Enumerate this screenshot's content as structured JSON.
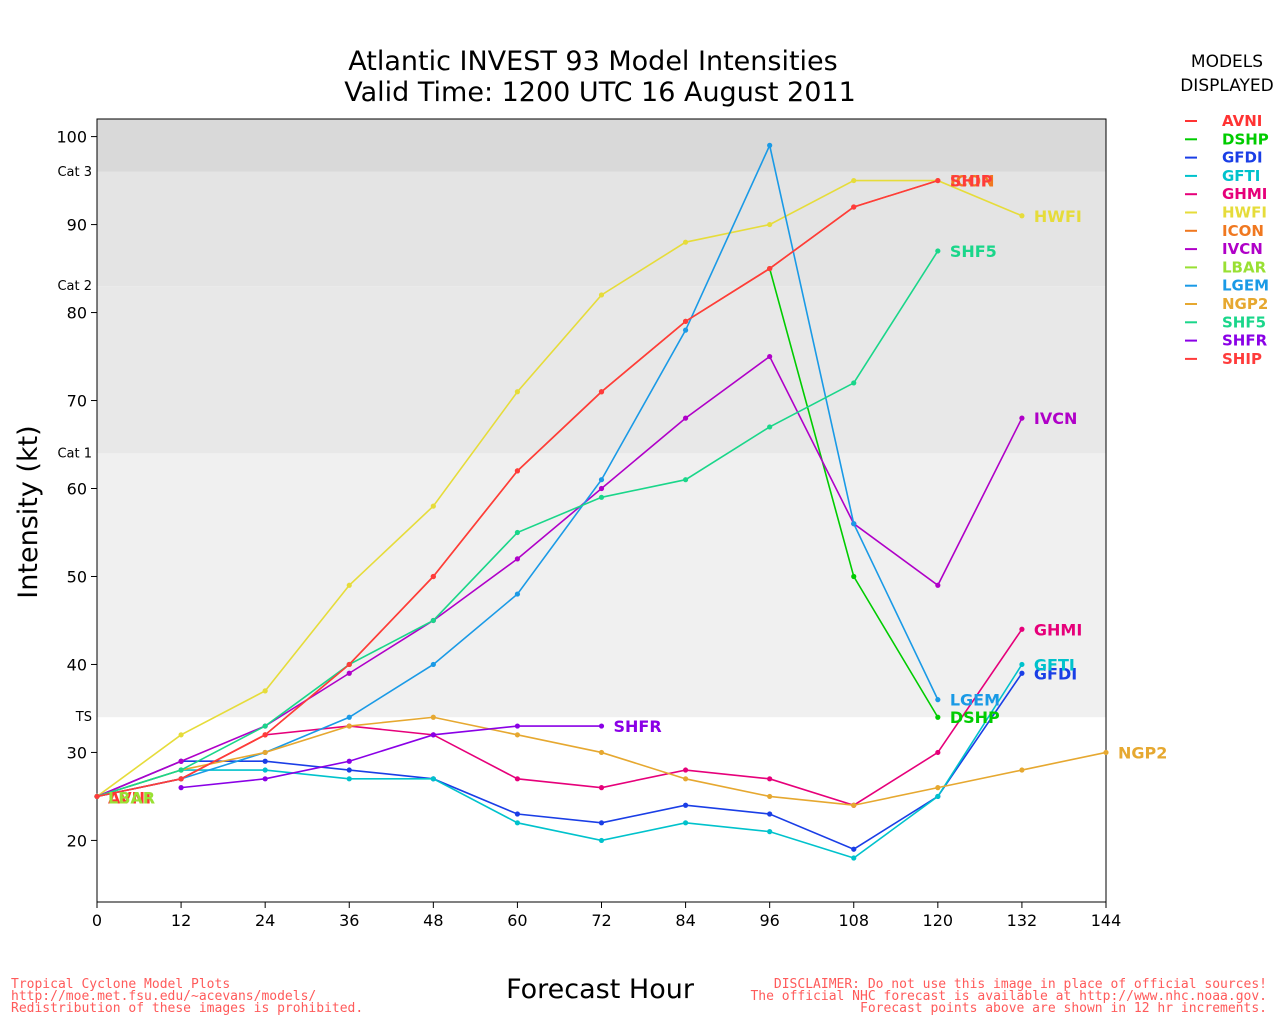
{
  "chart_data": {
    "type": "line",
    "title": [
      "Atlantic INVEST 93 Model Intensities",
      "Valid Time: 1200 UTC 16 August 2011"
    ],
    "xlabel": "Forecast Hour",
    "ylabel": "Intensity (kt)",
    "xlim": [
      0,
      144
    ],
    "ylim": [
      13,
      102
    ],
    "xticks": [
      0,
      12,
      24,
      36,
      48,
      60,
      72,
      84,
      96,
      108,
      120,
      132,
      144
    ],
    "yticks": [
      20,
      30,
      40,
      50,
      60,
      70,
      80,
      90,
      100
    ],
    "grid": false,
    "bands": [
      {
        "from": 13,
        "to": 34,
        "color": "#ffffff"
      },
      {
        "from": 34,
        "to": 64,
        "color": "#f0f0f0"
      },
      {
        "from": 64,
        "to": 83,
        "color": "#e8e8e8"
      },
      {
        "from": 83,
        "to": 96,
        "color": "#e4e4e4"
      },
      {
        "from": 96,
        "to": 102,
        "color": "#d9d9d9"
      }
    ],
    "category_labels": [
      {
        "label": "TS",
        "value": 34
      },
      {
        "label": "Cat 1",
        "value": 64
      },
      {
        "label": "Cat 2",
        "value": 83
      },
      {
        "label": "Cat 3",
        "value": 96
      }
    ],
    "legend_title": [
      "MODELS",
      "DISPLAYED"
    ],
    "legend_placement": "right",
    "series": [
      {
        "name": "AVNI",
        "color": "#ff3333",
        "label_at_end": false,
        "points": [
          [
            0,
            25
          ]
        ]
      },
      {
        "name": "DSHP",
        "color": "#00cc00",
        "label_at_end": true,
        "points": [
          [
            96,
            85
          ],
          [
            108,
            50
          ],
          [
            120,
            34
          ]
        ]
      },
      {
        "name": "GFDI",
        "color": "#1a3ee6",
        "label_at_end": true,
        "points": [
          [
            0,
            25
          ],
          [
            12,
            29
          ],
          [
            24,
            29
          ],
          [
            36,
            28
          ],
          [
            48,
            27
          ],
          [
            60,
            23
          ],
          [
            72,
            22
          ],
          [
            84,
            24
          ],
          [
            96,
            23
          ],
          [
            108,
            19
          ],
          [
            120,
            25
          ],
          [
            132,
            39
          ]
        ]
      },
      {
        "name": "GFTI",
        "color": "#00c2cc",
        "label_at_end": true,
        "points": [
          [
            0,
            25
          ],
          [
            12,
            28
          ],
          [
            24,
            28
          ],
          [
            36,
            27
          ],
          [
            48,
            27
          ],
          [
            60,
            22
          ],
          [
            72,
            20
          ],
          [
            84,
            22
          ],
          [
            96,
            21
          ],
          [
            108,
            18
          ],
          [
            120,
            25
          ],
          [
            132,
            40
          ]
        ]
      },
      {
        "name": "GHMI",
        "color": "#e6007a",
        "label_at_end": true,
        "points": [
          [
            0,
            25
          ],
          [
            12,
            27
          ],
          [
            24,
            32
          ],
          [
            36,
            33
          ],
          [
            48,
            32
          ],
          [
            60,
            27
          ],
          [
            72,
            26
          ],
          [
            84,
            28
          ],
          [
            96,
            27
          ],
          [
            108,
            24
          ],
          [
            120,
            30
          ],
          [
            132,
            44
          ]
        ]
      },
      {
        "name": "HWFI",
        "color": "#e6dc3a",
        "label_at_end": true,
        "points": [
          [
            0,
            25
          ],
          [
            12,
            32
          ],
          [
            24,
            37
          ],
          [
            36,
            49
          ],
          [
            48,
            58
          ],
          [
            60,
            71
          ],
          [
            72,
            82
          ],
          [
            84,
            88
          ],
          [
            96,
            90
          ],
          [
            108,
            95
          ],
          [
            120,
            95
          ],
          [
            132,
            91
          ]
        ]
      },
      {
        "name": "ICON",
        "color": "#f07820",
        "label_at_end": true,
        "points": [
          [
            0,
            25
          ],
          [
            12,
            27
          ],
          [
            24,
            32
          ],
          [
            36,
            40
          ],
          [
            48,
            50
          ],
          [
            60,
            62
          ],
          [
            72,
            71
          ],
          [
            84,
            79
          ],
          [
            96,
            85
          ],
          [
            108,
            92
          ],
          [
            120,
            95
          ]
        ]
      },
      {
        "name": "IVCN",
        "color": "#b000c8",
        "label_at_end": true,
        "points": [
          [
            0,
            25
          ],
          [
            12,
            29
          ],
          [
            24,
            33
          ],
          [
            36,
            39
          ],
          [
            48,
            45
          ],
          [
            60,
            52
          ],
          [
            72,
            60
          ],
          [
            84,
            68
          ],
          [
            96,
            75
          ],
          [
            108,
            56
          ],
          [
            120,
            49
          ],
          [
            132,
            68
          ]
        ]
      },
      {
        "name": "LBAR",
        "color": "#99e033",
        "label_at_end": false,
        "points": [
          [
            0,
            25
          ]
        ]
      },
      {
        "name": "LGEM",
        "color": "#1a9ae6",
        "label_at_end": true,
        "points": [
          [
            0,
            25
          ],
          [
            12,
            27
          ],
          [
            24,
            30
          ],
          [
            36,
            34
          ],
          [
            48,
            40
          ],
          [
            60,
            48
          ],
          [
            72,
            61
          ],
          [
            84,
            78
          ],
          [
            96,
            99
          ],
          [
            108,
            56
          ],
          [
            120,
            36
          ]
        ]
      },
      {
        "name": "NGP2",
        "color": "#e6a830",
        "label_at_end": true,
        "points": [
          [
            0,
            25
          ],
          [
            12,
            28
          ],
          [
            24,
            30
          ],
          [
            36,
            33
          ],
          [
            48,
            34
          ],
          [
            60,
            32
          ],
          [
            72,
            30
          ],
          [
            84,
            27
          ],
          [
            96,
            25
          ],
          [
            108,
            24
          ],
          [
            120,
            26
          ],
          [
            132,
            28
          ],
          [
            144,
            30
          ]
        ]
      },
      {
        "name": "SHF5",
        "color": "#1ad68a",
        "label_at_end": true,
        "points": [
          [
            0,
            25
          ],
          [
            12,
            28
          ],
          [
            24,
            33
          ],
          [
            36,
            40
          ],
          [
            48,
            45
          ],
          [
            60,
            55
          ],
          [
            72,
            59
          ],
          [
            84,
            61
          ],
          [
            96,
            67
          ],
          [
            108,
            72
          ],
          [
            120,
            87
          ]
        ]
      },
      {
        "name": "SHFR",
        "color": "#8a00e6",
        "label_at_end": true,
        "points": [
          [
            12,
            26
          ],
          [
            24,
            27
          ],
          [
            36,
            29
          ],
          [
            48,
            32
          ],
          [
            60,
            33
          ],
          [
            72,
            33
          ]
        ]
      },
      {
        "name": "SHIP",
        "color": "#ff3b3b",
        "label_at_end": true,
        "points": [
          [
            0,
            25
          ],
          [
            12,
            27
          ],
          [
            24,
            32
          ],
          [
            36,
            40
          ],
          [
            48,
            50
          ],
          [
            60,
            62
          ],
          [
            72,
            71
          ],
          [
            84,
            79
          ],
          [
            96,
            85
          ],
          [
            108,
            92
          ],
          [
            120,
            95
          ]
        ]
      }
    ],
    "start_labels": [
      {
        "text": "AVNI",
        "color": "#ff3333"
      },
      {
        "text": "LBAR",
        "color": "#99e033"
      }
    ]
  },
  "footer": {
    "left": [
      "Tropical Cyclone Model Plots",
      "http://moe.met.fsu.edu/~acevans/models/",
      "Redistribution of these images is prohibited."
    ],
    "right": [
      "DISCLAIMER: Do not use this image in place of official sources!",
      "The official NHC forecast is available at http://www.nhc.noaa.gov.",
      "Forecast points above are shown in 12 hr increments."
    ]
  }
}
